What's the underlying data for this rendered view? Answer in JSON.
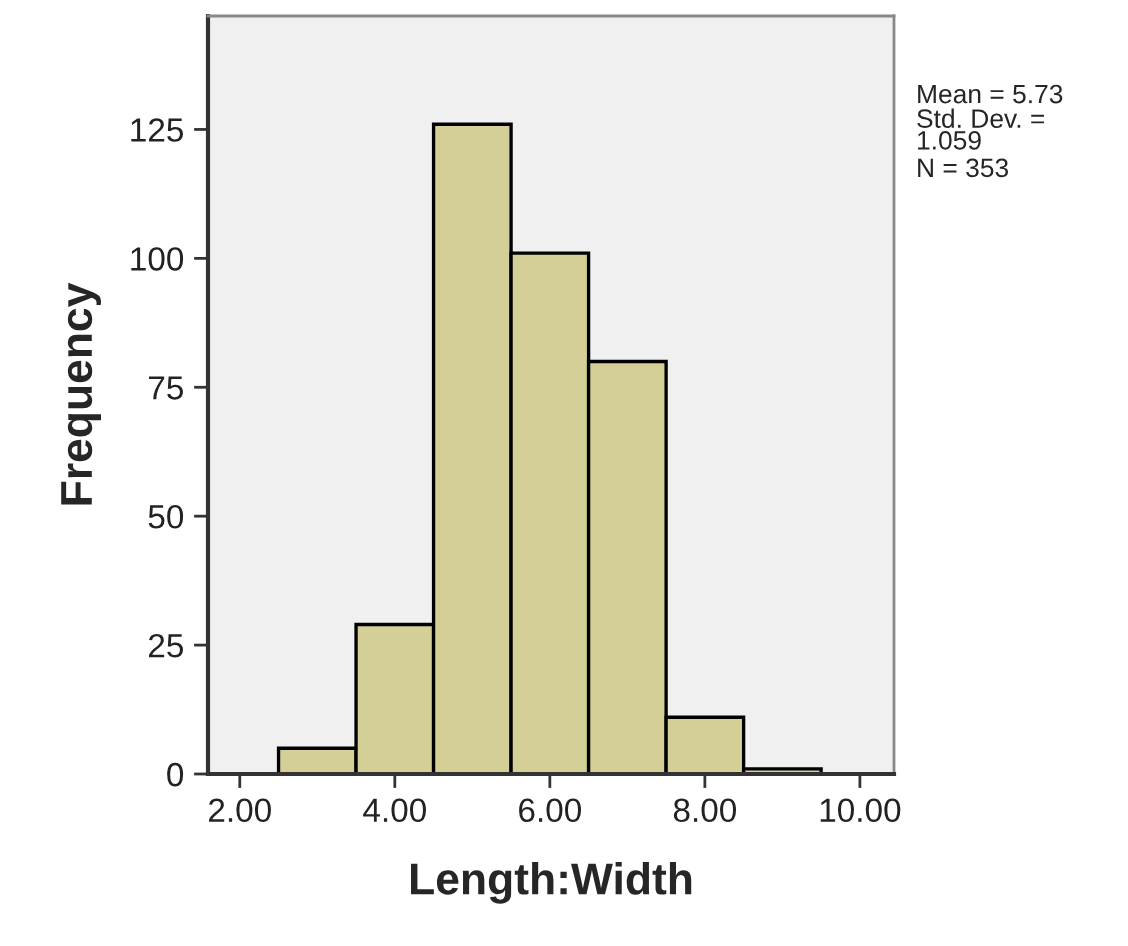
{
  "chart_data": {
    "type": "histogram",
    "xlabel": "Length:Width",
    "ylabel": "Frequency",
    "bins": [
      2.5,
      3.5,
      4.5,
      5.5,
      6.5,
      7.5,
      8.5,
      9.5
    ],
    "values": [
      5,
      29,
      126,
      101,
      80,
      11,
      1
    ],
    "color": "#d3cf97",
    "xlim": [
      1.59,
      10.44
    ],
    "xticks": [
      {
        "value": 2,
        "label": "2.00"
      },
      {
        "value": 4,
        "label": "4.00"
      },
      {
        "value": 6,
        "label": "6.00"
      },
      {
        "value": 8,
        "label": "8.00"
      },
      {
        "value": 10,
        "label": "10.00"
      }
    ],
    "ylim": [
      0,
      147
    ],
    "yticks": [
      0,
      25,
      50,
      75,
      100,
      125
    ],
    "grid": false,
    "legend": false,
    "annotations": [
      "Mean = 5.73",
      "Std. Dev. =\n1.059",
      "N = 353"
    ]
  }
}
